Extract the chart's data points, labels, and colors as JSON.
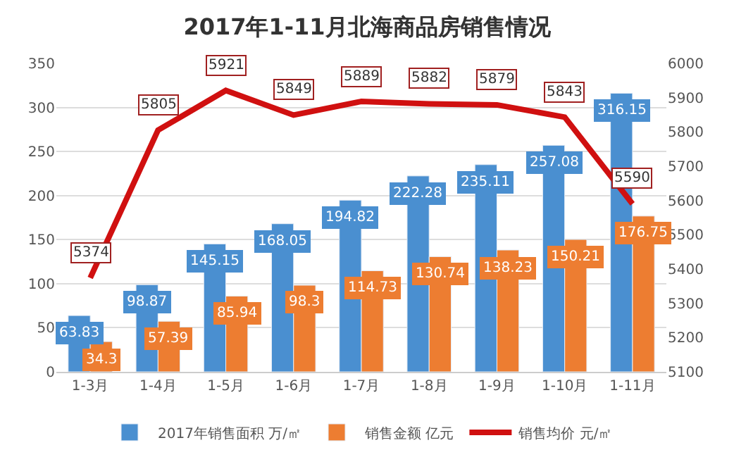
{
  "chart_data": {
    "type": "bar",
    "title": "2017年1-11月北海商品房销售情况",
    "categories": [
      "1-3月",
      "1-4月",
      "1-5月",
      "1-6月",
      "1-7月",
      "1-8月",
      "1-9月",
      "1-10月",
      "1-11月"
    ],
    "series": [
      {
        "name": "2017年销售面积 万/㎡",
        "color": "#4a8fd0",
        "values": [
          63.83,
          98.87,
          145.15,
          168.05,
          194.82,
          222.28,
          235.11,
          257.08,
          316.15
        ]
      },
      {
        "name": "销售金额 亿元",
        "color": "#ed7d31",
        "values": [
          34.3,
          57.39,
          85.94,
          98.3,
          114.73,
          130.74,
          138.23,
          150.21,
          176.75
        ]
      },
      {
        "name": "销售均价 元/㎡",
        "type": "line",
        "axis": "y2",
        "color": "#d01010",
        "values": [
          5374,
          5805,
          5921,
          5849,
          5889,
          5882,
          5879,
          5843,
          5590
        ]
      }
    ],
    "ylim": [
      0,
      350
    ],
    "yticks": [
      0,
      50,
      100,
      150,
      200,
      250,
      300,
      350
    ],
    "y2lim": [
      5100,
      6000
    ],
    "y2ticks": [
      5100,
      5200,
      5300,
      5400,
      5500,
      5600,
      5700,
      5800,
      5900,
      6000
    ],
    "data_labels": true,
    "grid": "y",
    "legend": "bottom",
    "marker": "none"
  }
}
